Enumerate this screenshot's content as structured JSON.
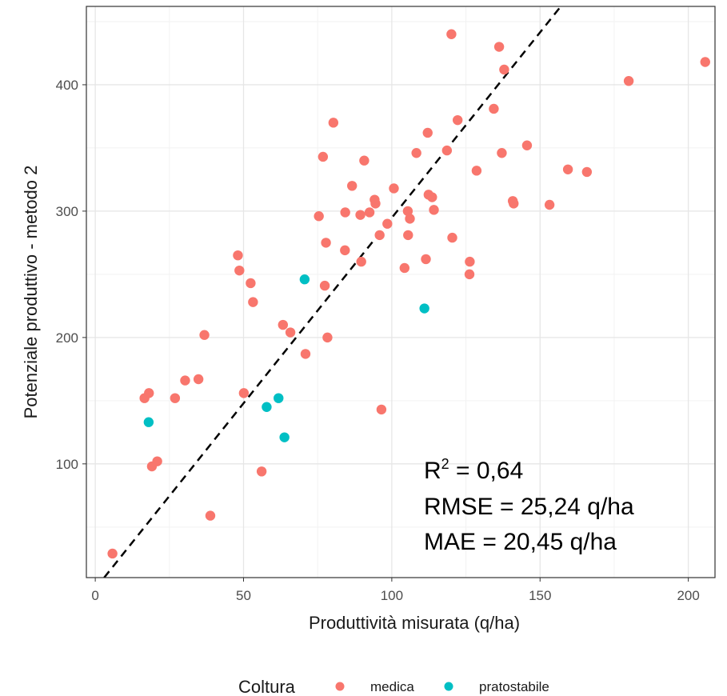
{
  "chart_data": {
    "type": "scatter",
    "title": "",
    "xlabel": "Produttività misurata (q/ha)",
    "ylabel": "Potenziale produttivo - metodo 2",
    "xlim": [
      -3,
      209
    ],
    "ylim": [
      10,
      462
    ],
    "x_ticks": [
      0,
      50,
      100,
      150,
      200
    ],
    "y_ticks": [
      100,
      200,
      300,
      400
    ],
    "grid": true,
    "reference_line": {
      "style": "dashed",
      "color": "#000000",
      "from": [
        3,
        10
      ],
      "to": [
        157,
        462
      ]
    },
    "annotations": {
      "r2": {
        "prefix": "R",
        "sup": "2",
        "value": " = 0,64"
      },
      "rmse": "RMSE = 25,24 q/ha",
      "mae": "MAE = 20,45 q/ha"
    },
    "legend": {
      "title": "Coltura",
      "position": "bottom",
      "entries": [
        {
          "label": "medica",
          "color": "#F8766D"
        },
        {
          "label": "pratostabile",
          "color": "#00BFC4"
        }
      ]
    },
    "series": [
      {
        "name": "medica",
        "color": "#F8766D",
        "points": [
          [
            5.8,
            29
          ],
          [
            16.6,
            152
          ],
          [
            18.1,
            156
          ],
          [
            19.1,
            98
          ],
          [
            20.9,
            102
          ],
          [
            26.9,
            152
          ],
          [
            30.3,
            166
          ],
          [
            34.8,
            167
          ],
          [
            36.8,
            202
          ],
          [
            38.8,
            59
          ],
          [
            48.1,
            265
          ],
          [
            48.6,
            253
          ],
          [
            50.1,
            156
          ],
          [
            52.4,
            243
          ],
          [
            53.2,
            228
          ],
          [
            56.1,
            94
          ],
          [
            63.3,
            210
          ],
          [
            65.8,
            204
          ],
          [
            70.9,
            187
          ],
          [
            75.4,
            296
          ],
          [
            76.8,
            343
          ],
          [
            77.8,
            275
          ],
          [
            77.4,
            241
          ],
          [
            78.3,
            200
          ],
          [
            80.3,
            370
          ],
          [
            84.2,
            269
          ],
          [
            84.3,
            299
          ],
          [
            86.6,
            320
          ],
          [
            89.4,
            297
          ],
          [
            89.7,
            260
          ],
          [
            90.7,
            340
          ],
          [
            92.5,
            299
          ],
          [
            94.2,
            309
          ],
          [
            94.5,
            306
          ],
          [
            95.9,
            281
          ],
          [
            96.5,
            143
          ],
          [
            98.5,
            290
          ],
          [
            100.7,
            318
          ],
          [
            104.3,
            255
          ],
          [
            105.4,
            300
          ],
          [
            105.5,
            281
          ],
          [
            106.1,
            294
          ],
          [
            108.3,
            346
          ],
          [
            111.5,
            262
          ],
          [
            112.1,
            362
          ],
          [
            112.4,
            313
          ],
          [
            113.6,
            311
          ],
          [
            114.2,
            301
          ],
          [
            118.6,
            348
          ],
          [
            120.4,
            279
          ],
          [
            120.1,
            440
          ],
          [
            122.2,
            372
          ],
          [
            126.3,
            260
          ],
          [
            126.2,
            250
          ],
          [
            128.6,
            332
          ],
          [
            134.4,
            381
          ],
          [
            136.2,
            430
          ],
          [
            137.1,
            346
          ],
          [
            137.9,
            412
          ],
          [
            140.8,
            308
          ],
          [
            141.1,
            306
          ],
          [
            145.6,
            352
          ],
          [
            153.2,
            305
          ],
          [
            159.4,
            333
          ],
          [
            165.8,
            331
          ],
          [
            179.9,
            403
          ],
          [
            205.7,
            418
          ]
        ]
      },
      {
        "name": "pratostabile",
        "color": "#00BFC4",
        "points": [
          [
            18.0,
            133
          ],
          [
            57.8,
            145
          ],
          [
            61.8,
            152
          ],
          [
            63.8,
            121
          ],
          [
            70.6,
            246
          ],
          [
            111.0,
            223
          ]
        ]
      }
    ]
  }
}
